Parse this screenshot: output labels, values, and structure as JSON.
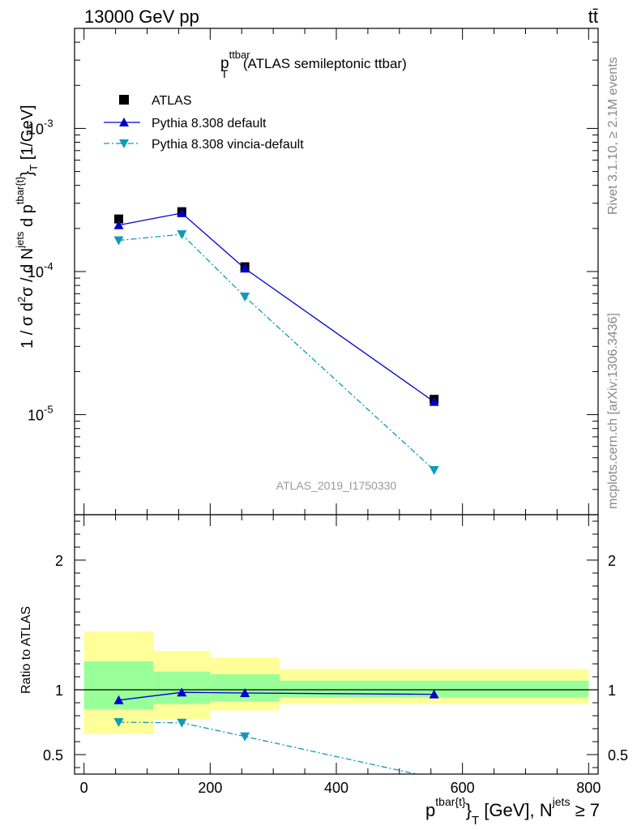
{
  "header": {
    "energy_label": "13000 GeV pp",
    "process_label": "tt̄"
  },
  "side_labels": {
    "rivet": "Rivet 3.1.10, ≥ 2.1M events",
    "mcplots": "mcplots.cern.ch [arXiv:1306.3436]"
  },
  "plot_title": {
    "main": "p",
    "sub": "T",
    "sup": "ttbar",
    "rest": " (ATLAS semileptonic ttbar)"
  },
  "watermark": "ATLAS_2019_I1750330",
  "legend": {
    "placement": "top-left",
    "entries": [
      "ATLAS",
      "Pythia 8.308 default",
      "Pythia 8.308 vincia-default"
    ]
  },
  "colors": {
    "data": "#000000",
    "default": "#0000cc",
    "vincia": "#1199bb",
    "band_inner": "#99ff99",
    "band_outer": "#ffff99"
  },
  "y_axis_label": {
    "t1": "1 / σ d",
    "t1sup": "2",
    "t2": "σ / d N",
    "t2sup": "jets",
    "t3": " d p",
    "t3sup": "tbar{t}",
    "t4": "}",
    "t4sub": "T",
    "t5": " [1/GeV]"
  },
  "ratio_axis_label": "Ratio to ATLAS",
  "x_axis_label": {
    "t1": "p",
    "t1sup": "tbar{t}",
    "t2": "}",
    "t2sub": "T",
    "t3": " [GeV], N",
    "t3sup": "jets",
    "t4": " ≥ 7"
  },
  "chart_data": [
    {
      "type": "line",
      "y_scale": "log",
      "xlim": [
        -15,
        815
      ],
      "ylim": [
        2e-06,
        0.005
      ],
      "y_ticks": [
        {
          "value": 0.001,
          "base": "10",
          "exp": "-3"
        },
        {
          "value": 0.0001,
          "base": "10",
          "exp": "-4"
        },
        {
          "value": 1e-05,
          "base": "10",
          "exp": "-5"
        }
      ],
      "bins": [
        [
          0,
          110
        ],
        [
          110,
          200
        ],
        [
          200,
          310
        ],
        [
          310,
          800
        ]
      ],
      "series": [
        {
          "name": "ATLAS",
          "x": [
            55,
            155,
            255,
            555
          ],
          "y": [
            0.000233,
            0.000262,
            0.000108,
            1.28e-05
          ]
        },
        {
          "name": "Pythia 8.308 default",
          "x": [
            55,
            155,
            255,
            555
          ],
          "y": [
            0.000211,
            0.000256,
            0.000105,
            1.23e-05
          ]
        },
        {
          "name": "Pythia 8.308 vincia-default",
          "x": [
            55,
            155,
            255,
            555
          ],
          "y": [
            0.000165,
            0.000182,
            6.68e-05,
            4.1e-06
          ]
        }
      ]
    },
    {
      "type": "line",
      "ylim": [
        0.35,
        2.35
      ],
      "y_ticks": [
        0.5,
        1,
        2
      ],
      "y_ticklabels": [
        "0.5",
        "1",
        "2"
      ],
      "x_ticks": [
        0,
        200,
        400,
        600,
        800
      ],
      "x_ticklabels": [
        "0",
        "200",
        "400",
        "600",
        "800"
      ],
      "bands": {
        "bins": [
          [
            0,
            110
          ],
          [
            110,
            200
          ],
          [
            200,
            310
          ],
          [
            310,
            800
          ]
        ],
        "inner": [
          [
            0.85,
            1.22
          ],
          [
            0.89,
            1.14
          ],
          [
            0.91,
            1.12
          ],
          [
            0.94,
            1.07
          ]
        ],
        "outer": [
          [
            0.66,
            1.45
          ],
          [
            0.77,
            1.3
          ],
          [
            0.84,
            1.25
          ],
          [
            0.89,
            1.16
          ]
        ]
      },
      "series": [
        {
          "name": "Pythia 8.308 default",
          "x": [
            55,
            155,
            255,
            555
          ],
          "y": [
            0.92,
            0.98,
            0.975,
            0.965
          ]
        },
        {
          "name": "Pythia 8.308 vincia-default",
          "x": [
            55,
            155,
            255,
            555
          ],
          "y": [
            0.75,
            0.745,
            0.64,
            0.32
          ]
        }
      ]
    }
  ]
}
